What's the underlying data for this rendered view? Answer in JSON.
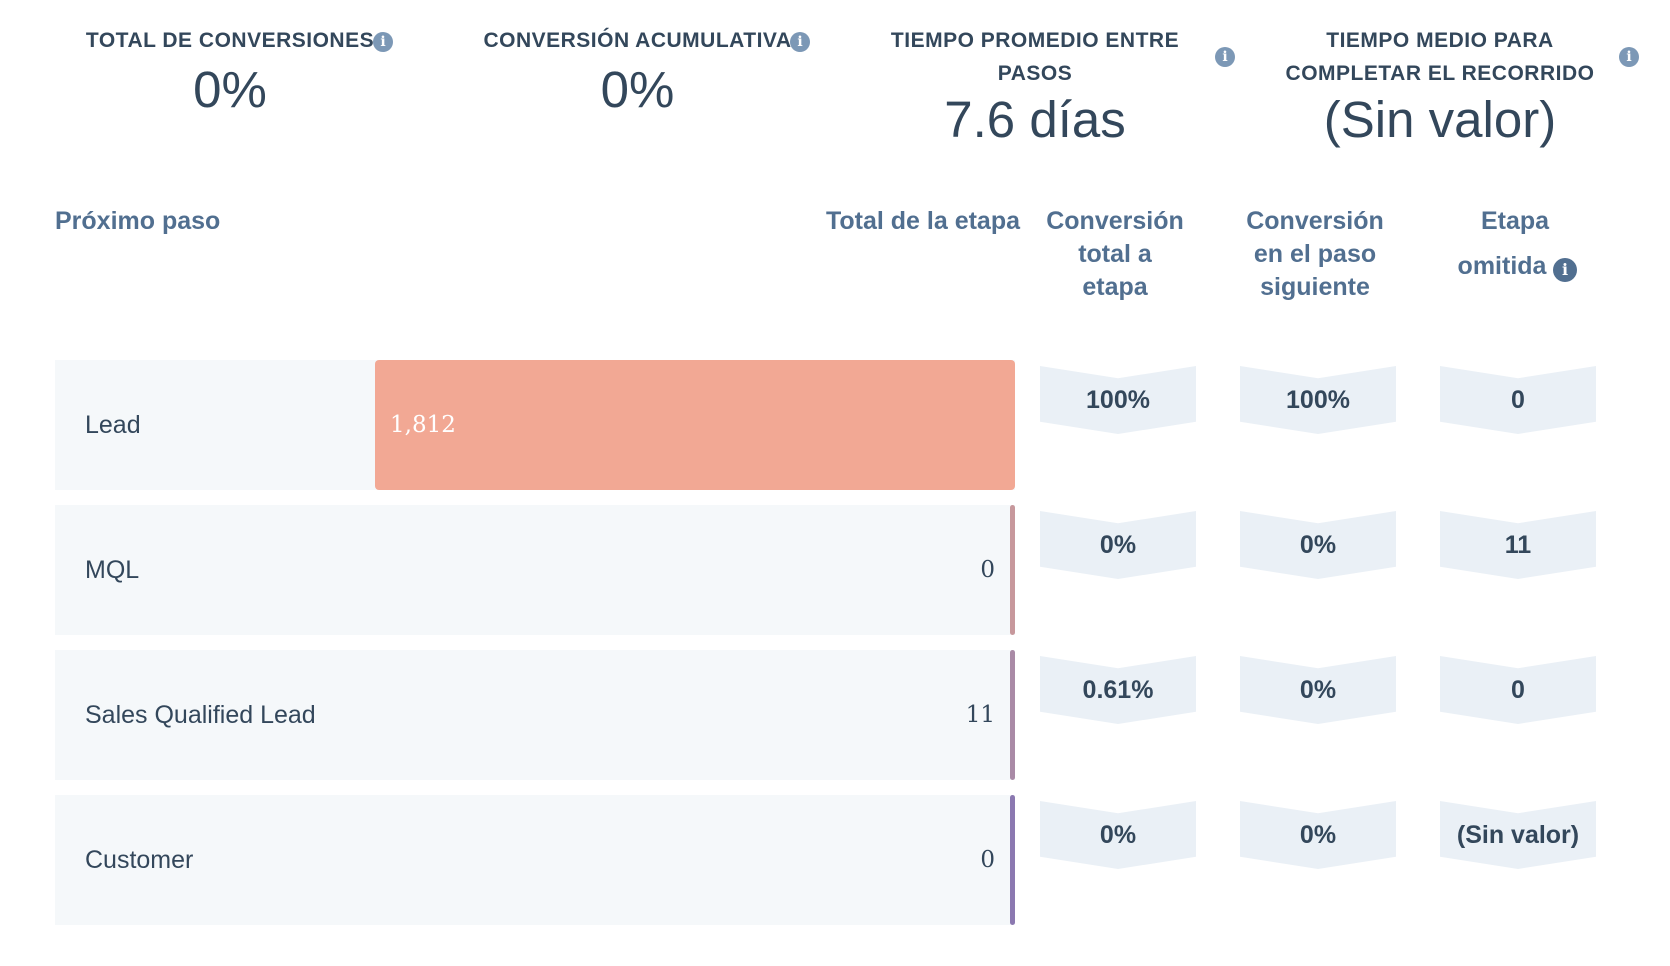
{
  "kpis": [
    {
      "label": "TOTAL DE CONVERSIONES",
      "value": "0%"
    },
    {
      "label": "CONVERSIÓN ACUMULATIVA",
      "value": "0%"
    },
    {
      "label_line1": "TIEMPO PROMEDIO ENTRE",
      "label_line2": "PASOS",
      "value": "7.6 días"
    },
    {
      "label_line1": "TIEMPO MEDIO PARA",
      "label_line2": "COMPLETAR EL RECORRIDO",
      "value": "(Sin valor)"
    }
  ],
  "info_icon": "info-icon",
  "table": {
    "headers": {
      "next_step": "Próximo paso",
      "stage_total": "Total de la etapa",
      "conv_total_l1": "Conversión",
      "conv_total_l2": "total a",
      "conv_total_l3": "etapa",
      "conv_next_l1": "Conversión",
      "conv_next_l2": "en el paso",
      "conv_next_l3": "siguiente",
      "skipped_l1": "Etapa",
      "skipped_l2": "omitida"
    },
    "rows": [
      {
        "stage": "Lead",
        "total": "1,812",
        "fill_fraction": 1.0,
        "conv_total": "100%",
        "conv_next": "100%",
        "skipped": "0",
        "color": "#f2a894"
      },
      {
        "stage": "MQL",
        "total": "0",
        "fill_fraction": 0.0,
        "conv_total": "0%",
        "conv_next": "0%",
        "skipped": "11",
        "color": "#c7989c"
      },
      {
        "stage": "Sales Qualified Lead",
        "total": "11",
        "fill_fraction": 0.0,
        "conv_total": "0.61%",
        "conv_next": "0%",
        "skipped": "0",
        "color": "#a98aa6"
      },
      {
        "stage": "Customer",
        "total": "0",
        "fill_fraction": 0.0,
        "conv_total": "0%",
        "conv_next": "0%",
        "skipped": "(Sin valor)",
        "color": "#8b78b0"
      }
    ]
  },
  "colors": {
    "text": "#33475b",
    "header_text": "#516f90",
    "row_bg": "#f5f8fa",
    "chevron_bg": "#eaf0f6",
    "info_icon": "#7c98b6"
  }
}
